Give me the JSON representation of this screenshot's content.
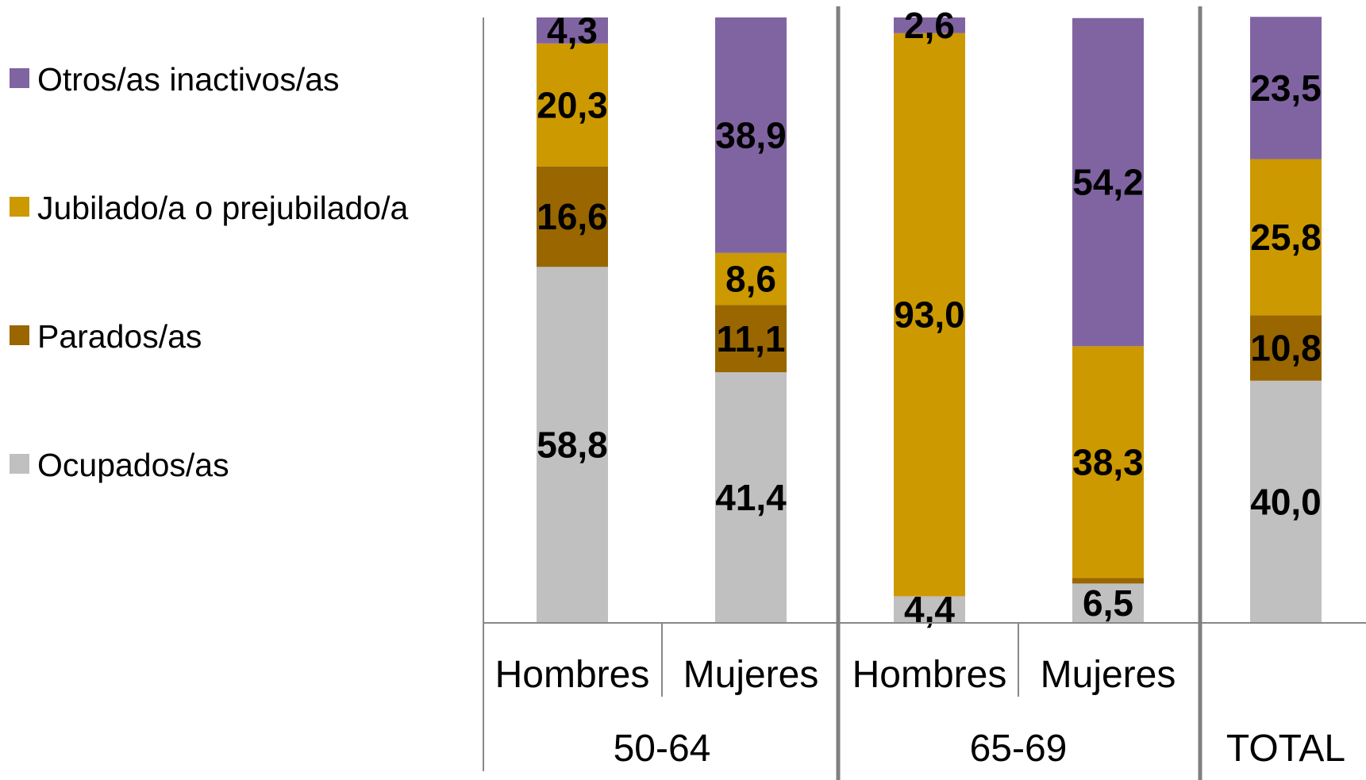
{
  "chart_data": {
    "type": "bar",
    "stacked": true,
    "percent_scale": true,
    "groups": [
      {
        "label": "50-64",
        "bars": [
          "Hombres",
          "Mujeres"
        ]
      },
      {
        "label": "65-69",
        "bars": [
          "Hombres",
          "Mujeres"
        ]
      },
      {
        "label": "TOTAL",
        "bars": [
          ""
        ]
      }
    ],
    "bars": [
      {
        "category": "Hombres",
        "group": "50-64",
        "values": {
          "Ocupados/as": 58.8,
          "Parados/as": 16.6,
          "Jubilado/a o prejubilado/a": 20.3,
          "Otros/as inactivos/as": 4.3
        }
      },
      {
        "category": "Mujeres",
        "group": "50-64",
        "values": {
          "Ocupados/as": 41.4,
          "Parados/as": 11.1,
          "Jubilado/a o prejubilado/a": 8.6,
          "Otros/as inactivos/as": 38.9
        }
      },
      {
        "category": "Hombres",
        "group": "65-69",
        "values": {
          "Ocupados/as": 4.4,
          "Parados/as": 0,
          "Jubilado/a o prejubilado/a": 93.0,
          "Otros/as inactivos/as": 2.6
        }
      },
      {
        "category": "Mujeres",
        "group": "65-69",
        "values": {
          "Ocupados/as": 6.5,
          "Parados/as": 0.9,
          "Jubilado/a o prejubilado/a": 38.3,
          "Otros/as inactivos/as": 54.2
        }
      },
      {
        "category": "",
        "group": "TOTAL",
        "values": {
          "Ocupados/as": 40.0,
          "Parados/as": 10.8,
          "Jubilado/a o prejubilado/a": 25.8,
          "Otros/as inactivos/as": 23.5
        }
      }
    ],
    "value_labels": [
      {
        "Ocupados/as": "58,8",
        "Parados/as": "16,6",
        "Jubilado/a o prejubilado/a": "20,3",
        "Otros/as inactivos/as": "4,3"
      },
      {
        "Ocupados/as": "41,4",
        "Parados/as": "11,1",
        "Jubilado/a o prejubilado/a": "8,6",
        "Otros/as inactivos/as": "38,9"
      },
      {
        "Ocupados/as": "4,4",
        "Parados/as": "",
        "Jubilado/a o prejubilado/a": "93,0",
        "Otros/as inactivos/as": "2,6"
      },
      {
        "Ocupados/as": "6,5",
        "Parados/as": "0,9",
        "Jubilado/a o prejubilado/a": "38,3",
        "Otros/as inactivos/as": "54,2"
      },
      {
        "Ocupados/as": "40,0",
        "Parados/as": "10,8",
        "Jubilado/a o prejubilado/a": "25,8",
        "Otros/as inactivos/as": "23,5"
      }
    ],
    "series": [
      {
        "name": "Ocupados/as",
        "color": "#c0c0c0"
      },
      {
        "name": "Parados/as",
        "color": "#996600"
      },
      {
        "name": "Jubilado/a o prejubilado/a",
        "color": "#cc9900"
      },
      {
        "name": "Otros/as inactivos/as",
        "color": "#8064a2"
      }
    ],
    "legend_position": "left",
    "legend_order": [
      "Otros/as inactivos/as",
      "Jubilado/a o prejubilado/a",
      "Parados/as",
      "Ocupados/as"
    ],
    "ylim": [
      0,
      100
    ],
    "grid": false
  }
}
